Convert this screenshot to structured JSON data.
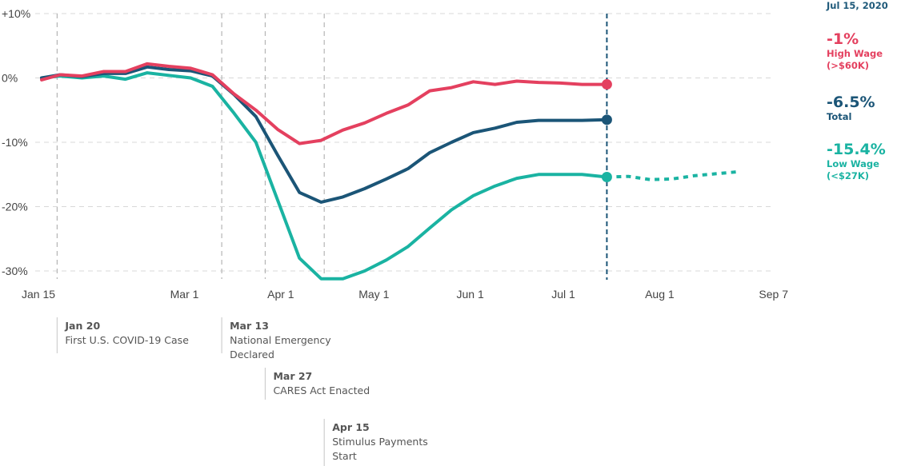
{
  "chart_data": {
    "type": "line",
    "ylim": [
      -32,
      10
    ],
    "y_ticks": [
      {
        "value": 10,
        "label": "+10%"
      },
      {
        "value": 0,
        "label": "0%"
      },
      {
        "value": -10,
        "label": "-10%"
      },
      {
        "value": -20,
        "label": "-20%"
      },
      {
        "value": -30,
        "label": "-30%"
      }
    ],
    "x_range": [
      "2020-01-15",
      "2020-09-07"
    ],
    "x_ticks": [
      {
        "date": "2020-01-15",
        "label": "Jan 15"
      },
      {
        "date": "2020-03-01",
        "label": "Mar 1"
      },
      {
        "date": "2020-04-01",
        "label": "Apr 1"
      },
      {
        "date": "2020-05-01",
        "label": "May 1"
      },
      {
        "date": "2020-06-01",
        "label": "Jun 1"
      },
      {
        "date": "2020-07-01",
        "label": "Jul 1"
      },
      {
        "date": "2020-08-01",
        "label": "Aug 1"
      },
      {
        "date": "2020-09-07",
        "label": "Sep 7"
      }
    ],
    "grid": true,
    "current_date_label": "Jul 15, 2020",
    "current_date": "2020-07-15",
    "series": [
      {
        "color": "#e4405f",
        "end_value": "-1%",
        "label_line1": "High Wage",
        "label_line2": "(>$60K)",
        "points": [
          [
            "2020-01-15",
            -0.3
          ],
          [
            "2020-01-21",
            0.5
          ],
          [
            "2020-01-28",
            0.3
          ],
          [
            "2020-02-04",
            1.0
          ],
          [
            "2020-02-11",
            1.0
          ],
          [
            "2020-02-18",
            2.2
          ],
          [
            "2020-02-25",
            1.8
          ],
          [
            "2020-03-03",
            1.5
          ],
          [
            "2020-03-10",
            0.5
          ],
          [
            "2020-03-17",
            -2.5
          ],
          [
            "2020-03-24",
            -5.0
          ],
          [
            "2020-03-31",
            -8.0
          ],
          [
            "2020-04-07",
            -10.2
          ],
          [
            "2020-04-14",
            -9.7
          ],
          [
            "2020-04-21",
            -8.1
          ],
          [
            "2020-04-28",
            -7.0
          ],
          [
            "2020-05-05",
            -5.5
          ],
          [
            "2020-05-12",
            -4.2
          ],
          [
            "2020-05-19",
            -2.0
          ],
          [
            "2020-05-26",
            -1.5
          ],
          [
            "2020-06-02",
            -0.6
          ],
          [
            "2020-06-09",
            -1.0
          ],
          [
            "2020-06-16",
            -0.5
          ],
          [
            "2020-06-23",
            -0.7
          ],
          [
            "2020-06-30",
            -0.8
          ],
          [
            "2020-07-07",
            -1.0
          ],
          [
            "2020-07-15",
            -1.0
          ]
        ],
        "projection": []
      },
      {
        "color": "#1b5577",
        "end_value": "-6.5%",
        "label_line1": "Total",
        "label_line2": "",
        "points": [
          [
            "2020-01-15",
            0.0
          ],
          [
            "2020-01-21",
            0.5
          ],
          [
            "2020-01-28",
            0.2
          ],
          [
            "2020-02-04",
            0.7
          ],
          [
            "2020-02-11",
            0.7
          ],
          [
            "2020-02-18",
            1.7
          ],
          [
            "2020-02-25",
            1.3
          ],
          [
            "2020-03-03",
            1.1
          ],
          [
            "2020-03-10",
            0.3
          ],
          [
            "2020-03-17",
            -2.6
          ],
          [
            "2020-03-24",
            -6.0
          ],
          [
            "2020-03-31",
            -12.0
          ],
          [
            "2020-04-07",
            -17.8
          ],
          [
            "2020-04-14",
            -19.3
          ],
          [
            "2020-04-21",
            -18.5
          ],
          [
            "2020-04-28",
            -17.2
          ],
          [
            "2020-05-05",
            -15.7
          ],
          [
            "2020-05-12",
            -14.1
          ],
          [
            "2020-05-19",
            -11.6
          ],
          [
            "2020-05-26",
            -10.0
          ],
          [
            "2020-06-02",
            -8.5
          ],
          [
            "2020-06-09",
            -7.8
          ],
          [
            "2020-06-16",
            -6.9
          ],
          [
            "2020-06-23",
            -6.6
          ],
          [
            "2020-06-30",
            -6.6
          ],
          [
            "2020-07-07",
            -6.6
          ],
          [
            "2020-07-15",
            -6.5
          ]
        ],
        "projection": []
      },
      {
        "color": "#1ab3a2",
        "end_value": "-15.4%",
        "label_line1": "Low Wage",
        "label_line2": "(<$27K)",
        "points": [
          [
            "2020-01-15",
            0.0
          ],
          [
            "2020-01-21",
            0.3
          ],
          [
            "2020-01-28",
            0.0
          ],
          [
            "2020-02-04",
            0.3
          ],
          [
            "2020-02-11",
            -0.2
          ],
          [
            "2020-02-18",
            0.8
          ],
          [
            "2020-02-25",
            0.4
          ],
          [
            "2020-03-03",
            0.0
          ],
          [
            "2020-03-10",
            -1.3
          ],
          [
            "2020-03-17",
            -5.5
          ],
          [
            "2020-03-24",
            -10.0
          ],
          [
            "2020-03-31",
            -19.0
          ],
          [
            "2020-04-07",
            -28.0
          ],
          [
            "2020-04-14",
            -31.2
          ],
          [
            "2020-04-21",
            -31.2
          ],
          [
            "2020-04-28",
            -30.0
          ],
          [
            "2020-05-05",
            -28.3
          ],
          [
            "2020-05-12",
            -26.2
          ],
          [
            "2020-05-19",
            -23.3
          ],
          [
            "2020-05-26",
            -20.5
          ],
          [
            "2020-06-02",
            -18.3
          ],
          [
            "2020-06-09",
            -16.8
          ],
          [
            "2020-06-16",
            -15.6
          ],
          [
            "2020-06-23",
            -15.0
          ],
          [
            "2020-06-30",
            -15.0
          ],
          [
            "2020-07-07",
            -15.0
          ],
          [
            "2020-07-15",
            -15.4
          ]
        ],
        "projection": [
          [
            "2020-07-15",
            -15.4
          ],
          [
            "2020-07-22",
            -15.3
          ],
          [
            "2020-07-29",
            -15.8
          ],
          [
            "2020-08-05",
            -15.7
          ],
          [
            "2020-08-12",
            -15.2
          ],
          [
            "2020-08-19",
            -14.9
          ],
          [
            "2020-08-26",
            -14.6
          ]
        ]
      }
    ],
    "events": [
      {
        "date": "2020-01-20",
        "title": "Jan 20",
        "lines": [
          "First U.S. COVID-19 Case"
        ],
        "row": 0
      },
      {
        "date": "2020-03-13",
        "title": "Mar 13",
        "lines": [
          "National Emergency",
          "Declared"
        ],
        "row": 0
      },
      {
        "date": "2020-03-27",
        "title": "Mar 27",
        "lines": [
          "CARES Act Enacted"
        ],
        "row": 1
      },
      {
        "date": "2020-04-15",
        "title": "Apr 15",
        "lines": [
          "Stimulus Payments",
          "Start"
        ],
        "row": 2
      }
    ]
  }
}
